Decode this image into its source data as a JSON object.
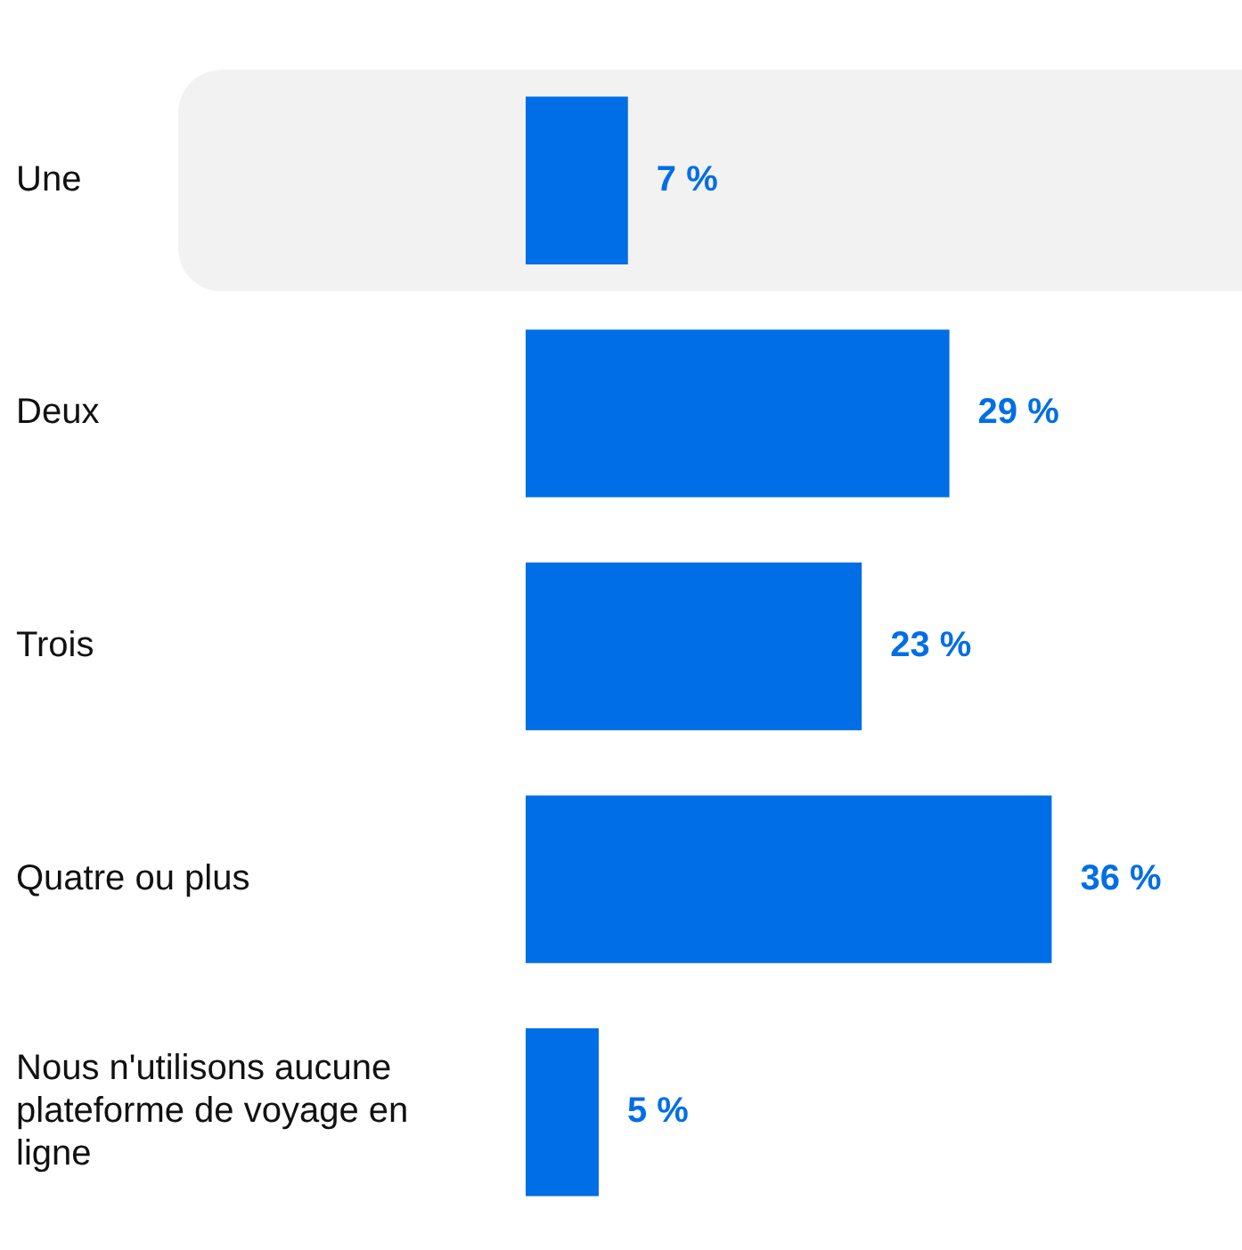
{
  "chart_data": {
    "type": "bar",
    "orientation": "horizontal",
    "categories": [
      "Une",
      "Deux",
      "Trois",
      "Quatre ou plus",
      "Nous n'utilisons aucune plateforme de voyage en ligne"
    ],
    "values": [
      7,
      29,
      23,
      36,
      5
    ],
    "value_labels": [
      "7 %",
      "29 %",
      "23 %",
      "36 %",
      "5 %"
    ],
    "color": "#006ee6",
    "legend": false,
    "grid": false,
    "bands": [
      {
        "axis": "y",
        "from": "Une",
        "to": "Une",
        "color": "#f2f2f2"
      }
    ]
  }
}
